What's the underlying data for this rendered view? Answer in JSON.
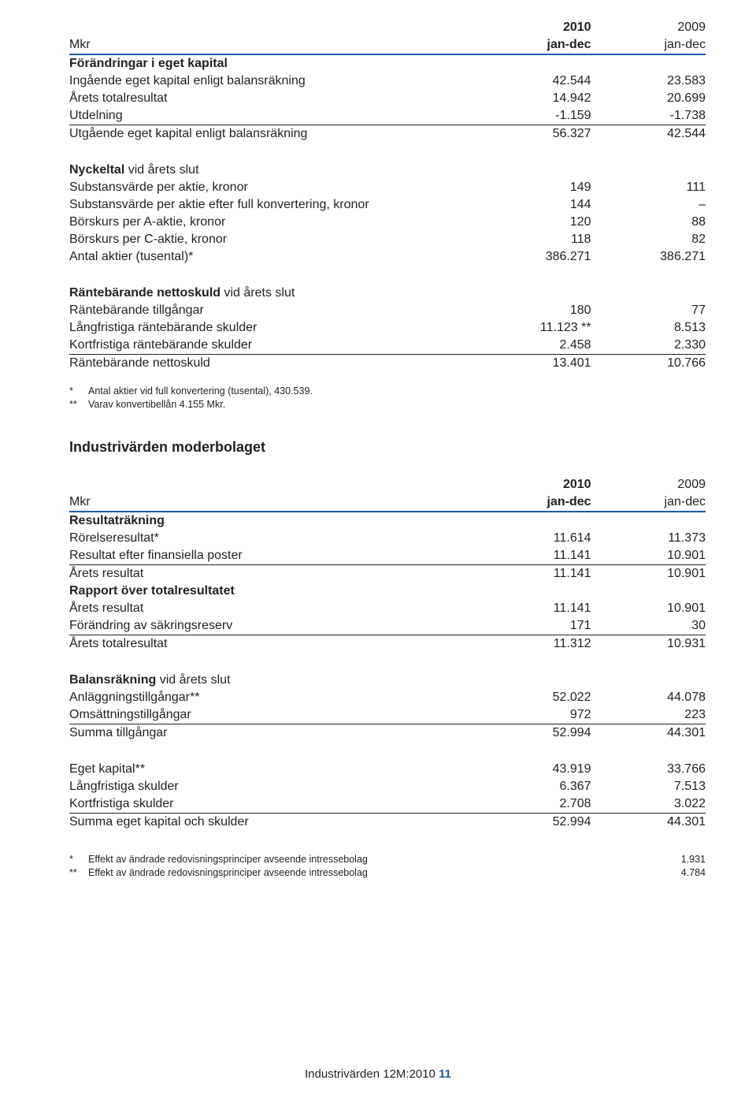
{
  "accent_color": "#1c5da5",
  "col_headers": {
    "mkr": "Mkr",
    "y2010": "2010",
    "y2009": "2009",
    "period": "jan-dec"
  },
  "table1": {
    "title": "Förändringar i eget kapital",
    "rows": [
      {
        "label": "Ingående eget kapital enligt balansräkning",
        "c1": "42.544",
        "c2": "23.583"
      },
      {
        "label": "Årets totalresultat",
        "c1": "14.942",
        "c2": "20.699"
      },
      {
        "label": "Utdelning",
        "c1": "-1.159",
        "c2": "-1.738",
        "rule": true
      },
      {
        "label": "Utgående eget kapital enligt balansräkning",
        "c1": "56.327",
        "c2": "42.544"
      }
    ]
  },
  "table2": {
    "title_bold": "Nyckeltal",
    "title_rest": " vid årets slut",
    "rows": [
      {
        "label": "Substansvärde per aktie, kronor",
        "c1": "149",
        "c2": "111"
      },
      {
        "label": "Substansvärde per aktie efter full konvertering, kronor",
        "c1": "144",
        "c2": "–"
      },
      {
        "label": "Börskurs per A-aktie, kronor",
        "c1": "120",
        "c2": "88"
      },
      {
        "label": "Börskurs per C-aktie, kronor",
        "c1": "118",
        "c2": "82"
      },
      {
        "label": "Antal aktier (tusental)*",
        "c1": "386.271",
        "c2": "386.271"
      }
    ]
  },
  "table3": {
    "title_bold": "Räntebärande nettoskuld",
    "title_rest": " vid årets slut",
    "rows": [
      {
        "label": "Räntebärande tillgångar",
        "c1": "180",
        "c2": "77"
      },
      {
        "label": "Långfristiga räntebärande skulder",
        "c1": "11.123 **",
        "c2": "8.513"
      },
      {
        "label": "Kortfristiga räntebärande skulder",
        "c1": "2.458",
        "c2": "2.330",
        "rule": true
      },
      {
        "label": "Räntebärande nettoskuld",
        "c1": "13.401",
        "c2": "10.766"
      }
    ]
  },
  "footnotes_a": [
    {
      "mark": "*",
      "text": "Antal aktier vid full konvertering (tusental), 430.539."
    },
    {
      "mark": "**",
      "text": "Varav konvertibellån 4.155 Mkr."
    }
  ],
  "section2_title": "Industrivärden moderbolaget",
  "table4": {
    "title": "Resultaträkning",
    "rows": [
      {
        "label": "Rörelseresultat*",
        "c1": "11.614",
        "c2": "11.373"
      },
      {
        "label": "Resultat efter finansiella poster",
        "c1": "11.141",
        "c2": "10.901",
        "rule": true
      },
      {
        "label": "Årets resultat",
        "c1": "11.141",
        "c2": "10.901"
      }
    ]
  },
  "table5": {
    "title": "Rapport över totalresultatet",
    "rows": [
      {
        "label": "Årets resultat",
        "c1": "11.141",
        "c2": "10.901"
      },
      {
        "label": "Förändring av säkringsreserv",
        "c1": "171",
        "c2": "30",
        "rule": true
      },
      {
        "label": "Årets totalresultat",
        "c1": "11.312",
        "c2": "10.931"
      }
    ]
  },
  "table6": {
    "title_bold": "Balansräkning",
    "title_rest": " vid årets slut",
    "rows": [
      {
        "label": "Anläggningstillgångar**",
        "c1": "52.022",
        "c2": "44.078"
      },
      {
        "label": "Omsättningstillgångar",
        "c1": "972",
        "c2": "223",
        "rule": true
      },
      {
        "label": "Summa tillgångar",
        "c1": "52.994",
        "c2": "44.301"
      }
    ]
  },
  "table7": {
    "rows": [
      {
        "label": "Eget kapital**",
        "c1": "43.919",
        "c2": "33.766"
      },
      {
        "label": "Långfristiga skulder",
        "c1": "6.367",
        "c2": "7.513"
      },
      {
        "label": "Kortfristiga skulder",
        "c1": "2.708",
        "c2": "3.022",
        "rule": true
      },
      {
        "label": "Summa eget kapital och skulder",
        "c1": "52.994",
        "c2": "44.301"
      }
    ]
  },
  "footnotes_b": [
    {
      "mark": "*",
      "text": "Effekt av ändrade redovisningsprinciper avseende intressebolag",
      "val": "1.931"
    },
    {
      "mark": "**",
      "text": "Effekt av ändrade redovisningsprinciper avseende intressebolag",
      "val": "4.784"
    }
  ],
  "footer": {
    "text": "Industrivärden 12M:2010",
    "page": "11"
  }
}
